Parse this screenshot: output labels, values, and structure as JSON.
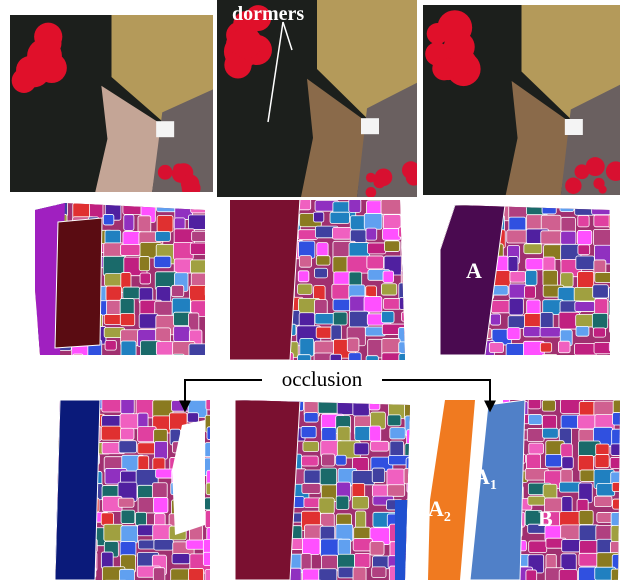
{
  "labels": {
    "dormers": "dormers",
    "occlusion": "occlusion",
    "region_a": "A",
    "region_a1": {
      "base": "A",
      "sub": "1"
    },
    "region_a2": {
      "base": "A",
      "sub": "2"
    },
    "region_b": "B"
  }
}
